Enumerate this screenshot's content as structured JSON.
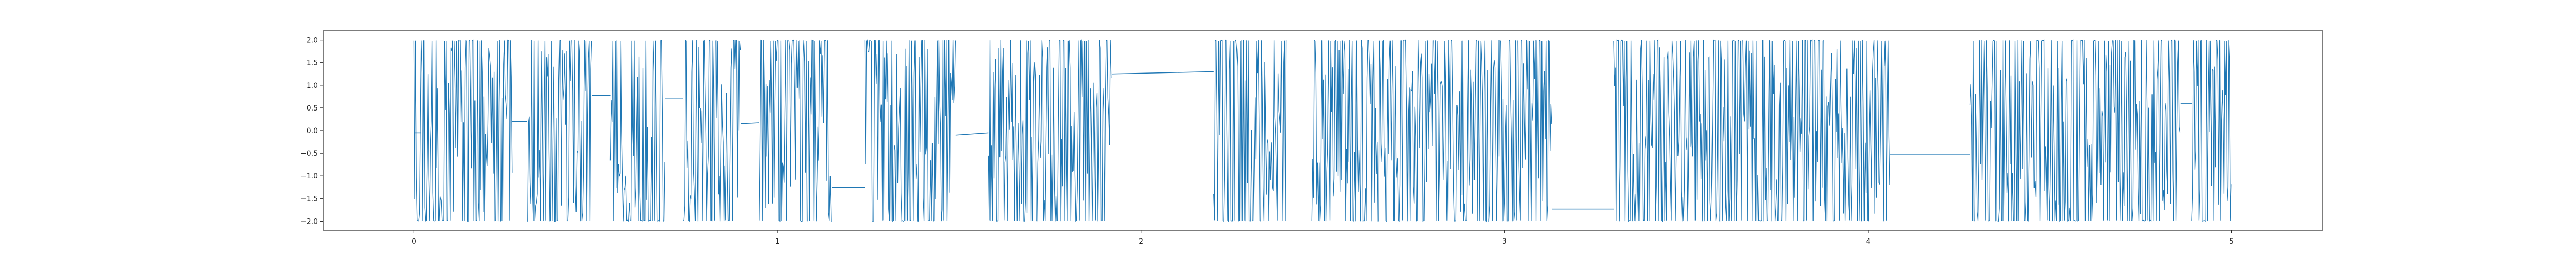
{
  "chart_data": {
    "type": "line",
    "title": "",
    "xlabel": "",
    "ylabel": "",
    "xlim": [
      -0.25,
      5.25
    ],
    "ylim": [
      -2.2,
      2.2
    ],
    "xticks": [
      0,
      1,
      2,
      3,
      4,
      5
    ],
    "xtick_labels": [
      "0",
      "1",
      "2",
      "3",
      "4",
      "5"
    ],
    "yticks": [
      2.0,
      1.5,
      1.0,
      0.5,
      0.0,
      -0.5,
      -1.0,
      -1.5,
      -2.0
    ],
    "ytick_labels": [
      "2.0",
      "1.5",
      "1.0",
      "0.5",
      "0.0",
      "−0.5",
      "−1.0",
      "−1.5",
      "−2.0"
    ],
    "grid": false,
    "line_color": "#1f77b4",
    "series": [
      {
        "name": "",
        "dense_segments": [
          {
            "x_start": 0.0,
            "x_end": 0.27,
            "y_min": -2.0,
            "y_max": 2.0
          },
          {
            "x_start": 0.31,
            "x_end": 0.49,
            "y_min": -2.0,
            "y_max": 2.0
          },
          {
            "x_start": 0.54,
            "x_end": 0.69,
            "y_min": -2.0,
            "y_max": 2.0
          },
          {
            "x_start": 0.74,
            "x_end": 0.9,
            "y_min": -2.0,
            "y_max": 2.0
          },
          {
            "x_start": 0.95,
            "x_end": 1.15,
            "y_min": -2.0,
            "y_max": 2.0
          },
          {
            "x_start": 1.24,
            "x_end": 1.49,
            "y_min": -2.0,
            "y_max": 2.0
          },
          {
            "x_start": 1.58,
            "x_end": 1.92,
            "y_min": -2.0,
            "y_max": 2.0
          },
          {
            "x_start": 2.2,
            "x_end": 2.4,
            "y_min": -2.0,
            "y_max": 2.0
          },
          {
            "x_start": 2.47,
            "x_end": 3.13,
            "y_min": -2.0,
            "y_max": 2.0
          },
          {
            "x_start": 3.3,
            "x_end": 4.06,
            "y_min": -2.0,
            "y_max": 2.0
          },
          {
            "x_start": 4.28,
            "x_end": 4.86,
            "y_min": -2.0,
            "y_max": 2.0
          },
          {
            "x_start": 4.89,
            "x_end": 5.0,
            "y_min": -2.0,
            "y_max": 2.0
          }
        ],
        "connectors": [
          {
            "from": [
              0.0,
              -0.05
            ],
            "to": [
              0.02,
              -0.05
            ]
          },
          {
            "from": [
              0.27,
              0.2
            ],
            "to": [
              0.31,
              0.2
            ]
          },
          {
            "from": [
              0.49,
              0.78
            ],
            "to": [
              0.54,
              0.78
            ]
          },
          {
            "from": [
              0.69,
              0.7
            ],
            "to": [
              0.74,
              0.7
            ]
          },
          {
            "from": [
              0.9,
              0.15
            ],
            "to": [
              0.95,
              0.17
            ]
          },
          {
            "from": [
              1.15,
              -1.25
            ],
            "to": [
              1.24,
              -1.25
            ]
          },
          {
            "from": [
              1.49,
              -0.1
            ],
            "to": [
              1.58,
              -0.05
            ]
          },
          {
            "from": [
              1.92,
              1.25
            ],
            "to": [
              2.2,
              1.3
            ]
          },
          {
            "from": [
              3.13,
              -1.73
            ],
            "to": [
              3.3,
              -1.73
            ]
          },
          {
            "from": [
              4.06,
              -0.52
            ],
            "to": [
              4.28,
              -0.52
            ]
          },
          {
            "from": [
              4.86,
              0.6
            ],
            "to": [
              4.89,
              0.6
            ]
          }
        ]
      }
    ]
  }
}
